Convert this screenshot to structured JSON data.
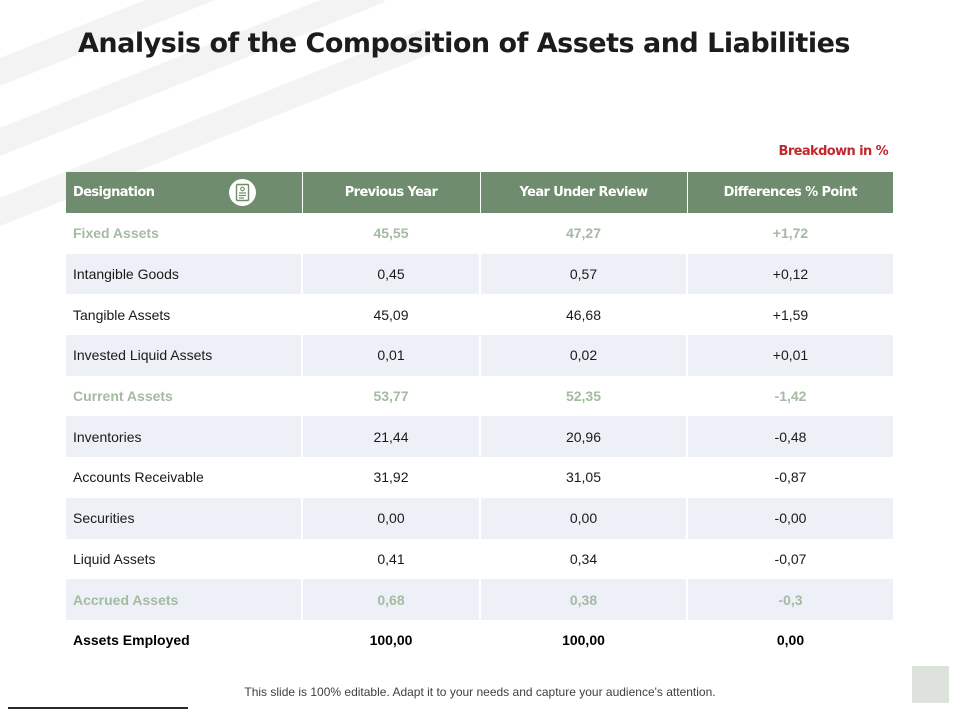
{
  "slide": {
    "title": "Analysis of the Composition of Assets and Liabilities",
    "breakdown_note": "Breakdown in %",
    "footer_text": "This slide is 100% editable. Adapt it to your needs and capture your audience's attention."
  },
  "table": {
    "headers": [
      "Designation",
      "Previous Year",
      "Year Under Review",
      "Differences % Point"
    ],
    "header_icon": "document-icon",
    "rows": [
      {
        "label": "Fixed Assets",
        "prev": "45,55",
        "review": "47,27",
        "diff": "+1,72",
        "kind": "section"
      },
      {
        "label": "Intangible  Goods",
        "prev": "0,45",
        "review": "0,57",
        "diff": "+0,12",
        "kind": "normal"
      },
      {
        "label": "Tangible Assets",
        "prev": "45,09",
        "review": "46,68",
        "diff": "+1,59",
        "kind": "normal"
      },
      {
        "label": "Invested Liquid Assets",
        "prev": "0,01",
        "review": "0,02",
        "diff": "+0,01",
        "kind": "normal"
      },
      {
        "label": "Current Assets",
        "prev": "53,77",
        "review": "52,35",
        "diff": "-1,42",
        "kind": "section"
      },
      {
        "label": "Inventories",
        "prev": "21,44",
        "review": "20,96",
        "diff": "-0,48",
        "kind": "normal"
      },
      {
        "label": "Accounts Receivable",
        "prev": "31,92",
        "review": "31,05",
        "diff": "-0,87",
        "kind": "normal"
      },
      {
        "label": "Securities",
        "prev": "0,00",
        "review": "0,00",
        "diff": "-0,00",
        "kind": "normal"
      },
      {
        "label": "Liquid Assets",
        "prev": "0,41",
        "review": "0,34",
        "diff": "-0,07",
        "kind": "normal"
      },
      {
        "label": "Accrued Assets",
        "prev": "0,68",
        "review": "0,38",
        "diff": "-0,3",
        "kind": "section"
      },
      {
        "label": "Assets Employed",
        "prev": "100,00",
        "review": "100,00",
        "diff": "0,00",
        "kind": "total"
      }
    ]
  },
  "colors": {
    "header_bg": "#6f8c6e",
    "section_text": "#a4bba2",
    "alt_row_bg": "#eef0f7",
    "breakdown_text": "#c0282d"
  }
}
